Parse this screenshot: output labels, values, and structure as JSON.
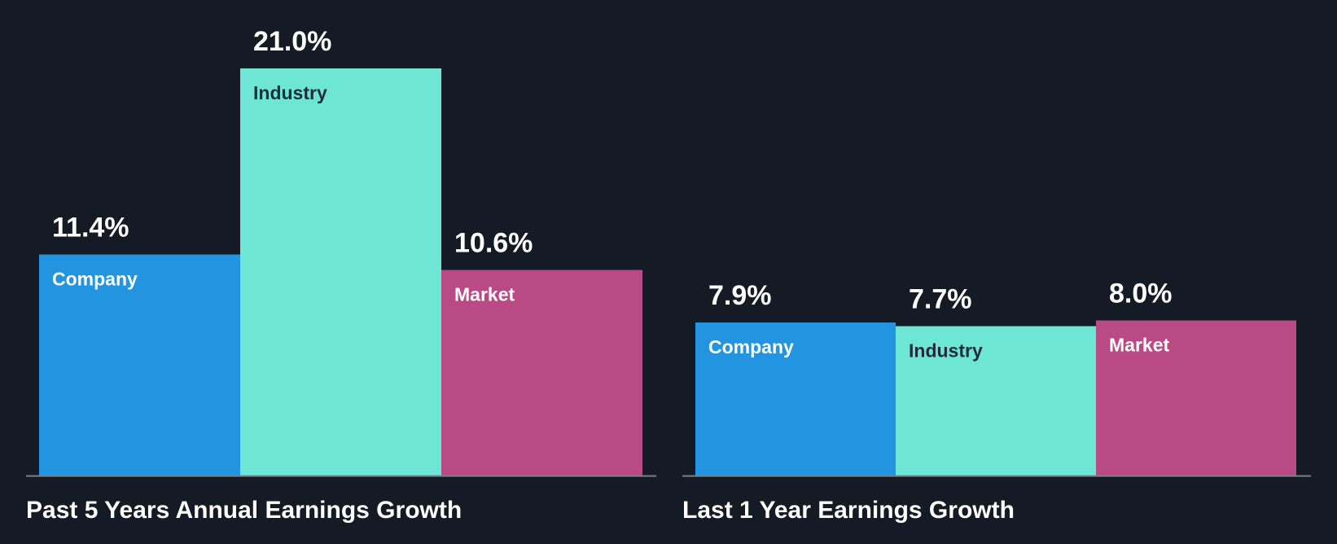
{
  "colors": {
    "background": "#151b24",
    "baseline": "#7a7f86",
    "value_text": "#ffffff",
    "title_text": "#ffffff",
    "company": "#2394e0",
    "industry": "#6ee6d6",
    "market": "#b94a86",
    "label_on_dark_bar": "#ffffff",
    "label_on_light_bar": "#1f2d3a"
  },
  "chart_data": [
    {
      "type": "bar",
      "title": "Past 5 Years Annual Earnings Growth",
      "categories": [
        "Company",
        "Industry",
        "Market"
      ],
      "values": [
        11.4,
        21.0,
        10.6
      ],
      "value_labels": [
        "11.4%",
        "21.0%",
        "10.6%"
      ],
      "ylim": [
        0,
        21.0
      ],
      "xlabel": "",
      "ylabel": "",
      "grid": false,
      "legend": "none"
    },
    {
      "type": "bar",
      "title": "Last 1 Year Earnings Growth",
      "categories": [
        "Company",
        "Industry",
        "Market"
      ],
      "values": [
        7.9,
        7.7,
        8.0
      ],
      "value_labels": [
        "7.9%",
        "7.7%",
        "8.0%"
      ],
      "ylim": [
        0,
        21.0
      ],
      "xlabel": "",
      "ylabel": "",
      "grid": false,
      "legend": "none"
    }
  ]
}
